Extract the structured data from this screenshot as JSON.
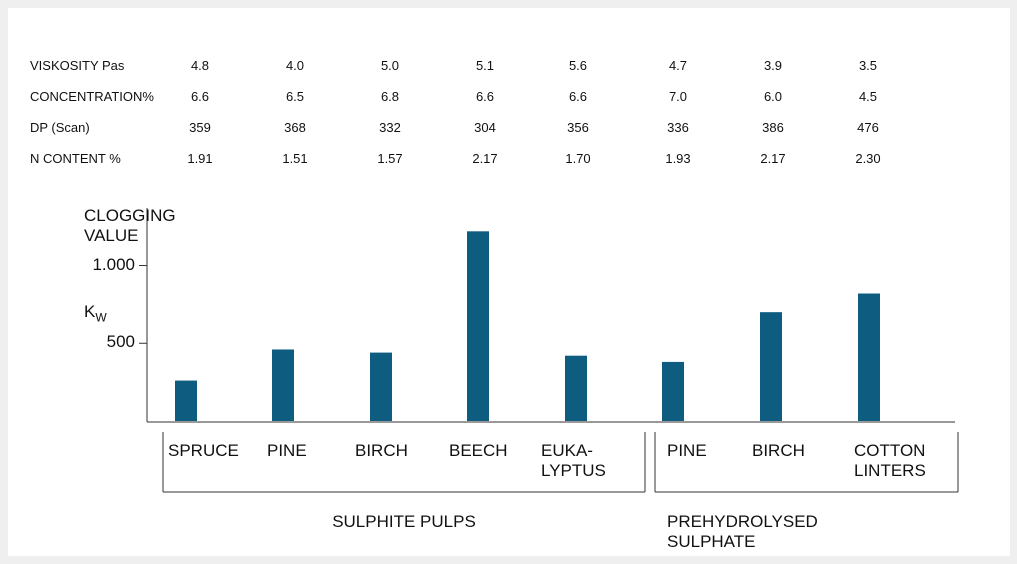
{
  "table": {
    "rows": [
      {
        "label": "VISKOSITY Pas",
        "values": [
          "4.8",
          "4.0",
          "5.0",
          "5.1",
          "5.6",
          "4.7",
          "3.9",
          "3.5"
        ]
      },
      {
        "label": "CONCENTRATION%",
        "values": [
          "6.6",
          "6.5",
          "6.8",
          "6.6",
          "6.6",
          "7.0",
          "6.0",
          "4.5"
        ]
      },
      {
        "label": "DP (Scan)",
        "values": [
          "359",
          "368",
          "332",
          "304",
          "356",
          "336",
          "386",
          "476"
        ]
      },
      {
        "label": "N CONTENT %",
        "values": [
          "1.91",
          "1.51",
          "1.57",
          "2.17",
          "1.70",
          "1.93",
          "2.17",
          "2.30"
        ]
      }
    ]
  },
  "chart_data": {
    "type": "bar",
    "y_label": "CLOGGING VALUE",
    "y_unit": "K",
    "y_unit_sub": "W",
    "categories": [
      "SPRUCE",
      "PINE",
      "BIRCH",
      "BEECH",
      "EUKA- LYPTUS",
      "PINE",
      "BIRCH",
      "COTTON LINTERS"
    ],
    "values": [
      260,
      460,
      440,
      1220,
      420,
      380,
      700,
      820
    ],
    "color": "#0e5c80",
    "ylim": [
      0,
      1370
    ],
    "yticks": [
      {
        "value": 1000,
        "label": "1.000"
      },
      500
    ],
    "groups": [
      "SULPHITE PULPS",
      "PREHYDROLYSED SULPHATE"
    ]
  }
}
